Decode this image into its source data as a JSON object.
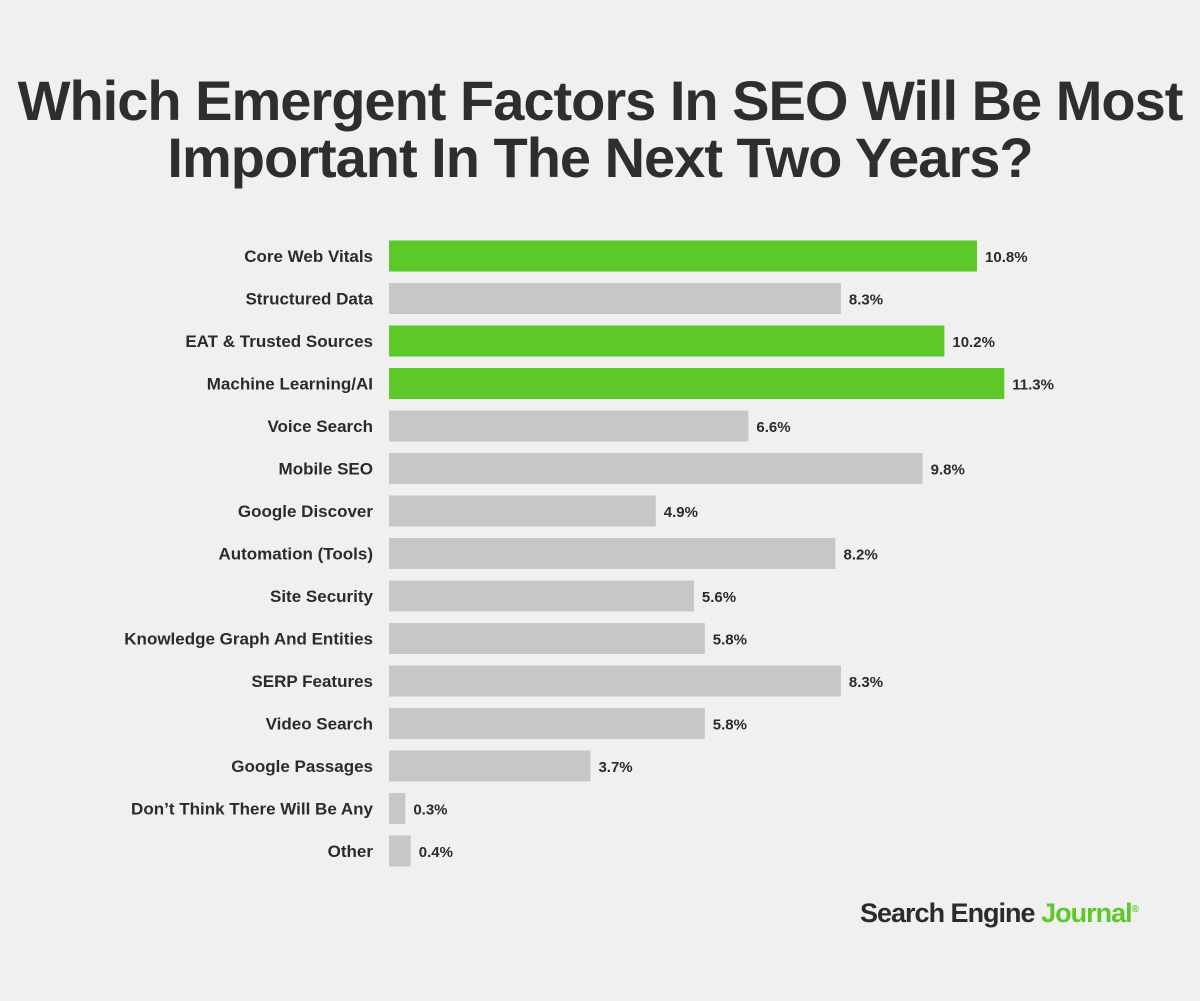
{
  "chart_data": {
    "type": "bar",
    "orientation": "horizontal",
    "title": "Which Emergent Factors In SEO Will Be Most Important In The Next Two Years?",
    "categories": [
      "Core Web Vitals",
      "Structured Data",
      "EAT & Trusted Sources",
      "Machine Learning/AI",
      "Voice Search",
      "Mobile SEO",
      "Google Discover",
      "Automation (Tools)",
      "Site Security",
      "Knowledge Graph And Entities",
      "SERP Features",
      "Video Search",
      "Google Passages",
      "Don’t Think There Will Be Any",
      "Other"
    ],
    "values": [
      10.8,
      8.3,
      10.2,
      11.3,
      6.6,
      9.8,
      4.9,
      8.2,
      5.6,
      5.8,
      8.3,
      5.8,
      3.7,
      0.3,
      0.4
    ],
    "data_labels": [
      "10.8%",
      "8.3%",
      "10.2%",
      "11.3%",
      "6.6%",
      "9.8%",
      "4.9%",
      "8.2%",
      "5.6%",
      "5.8%",
      "8.3%",
      "5.8%",
      "3.7%",
      "0.3%",
      "0.4%"
    ],
    "highlighted": [
      true,
      false,
      true,
      true,
      false,
      false,
      false,
      false,
      false,
      false,
      false,
      false,
      false,
      false,
      false
    ],
    "colors": {
      "highlight": "#5dc82a",
      "default": "#c6c7c9",
      "background": "#f0f0f0",
      "text": "#2b2b2b"
    },
    "grid": false,
    "axis_visible": false
  },
  "logo": {
    "part1": "Search Engine",
    "part2": "Journal",
    "mark": "®"
  }
}
